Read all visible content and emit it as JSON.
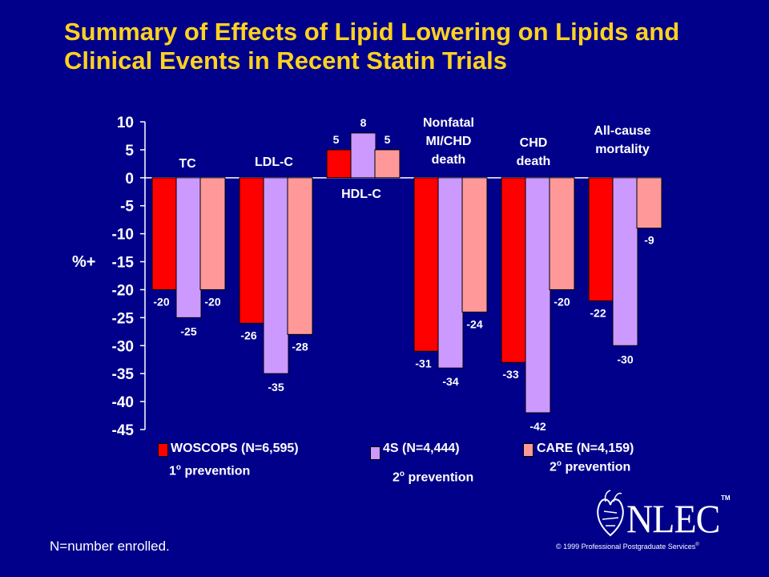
{
  "title": "Summary of Effects of Lipid Lowering on Lipids and Clinical Events in Recent Statin Trials",
  "chart_data": {
    "type": "bar",
    "ylabel": "%+",
    "ylim": [
      -45,
      10
    ],
    "yticks": [
      10,
      5,
      0,
      -5,
      -10,
      -15,
      -20,
      -25,
      -30,
      -35,
      -40,
      -45
    ],
    "categories": [
      "TC",
      "LDL-C",
      "HDL-C",
      "Nonfatal MI/CHD death",
      "CHD death",
      "All-cause mortality"
    ],
    "category_label_lines": [
      [
        "TC"
      ],
      [
        "LDL-C"
      ],
      [
        "HDL-C"
      ],
      [
        "Nonfatal",
        "MI/CHD",
        "death"
      ],
      [
        "CHD",
        "death"
      ],
      [
        "All-cause",
        "mortality"
      ]
    ],
    "series": [
      {
        "name": "WOSCOPS (N=6,595)",
        "color": "#FF0000",
        "values": [
          -20,
          -26,
          5,
          -31,
          -33,
          -22
        ]
      },
      {
        "name": "4S (N=4,444)",
        "color": "#CC99FF",
        "values": [
          -25,
          -35,
          8,
          -34,
          -42,
          -30
        ]
      },
      {
        "name": "CARE (N=4,159)",
        "color": "#FF9999",
        "values": [
          -20,
          -28,
          5,
          -24,
          -20,
          -9
        ]
      }
    ],
    "grid": false,
    "legend_position": "bottom"
  },
  "prevention": {
    "woscops": "1",
    "s4": "2",
    "care": "2",
    "degree": "o",
    "word": "prevention"
  },
  "footnote": "N=number enrolled.",
  "logo": {
    "text": "NLEC",
    "tm": "TM",
    "icon": "heart-icon"
  },
  "copyright": {
    "text": "© 1999 Professional Postgraduate Services",
    "mark": "®"
  }
}
